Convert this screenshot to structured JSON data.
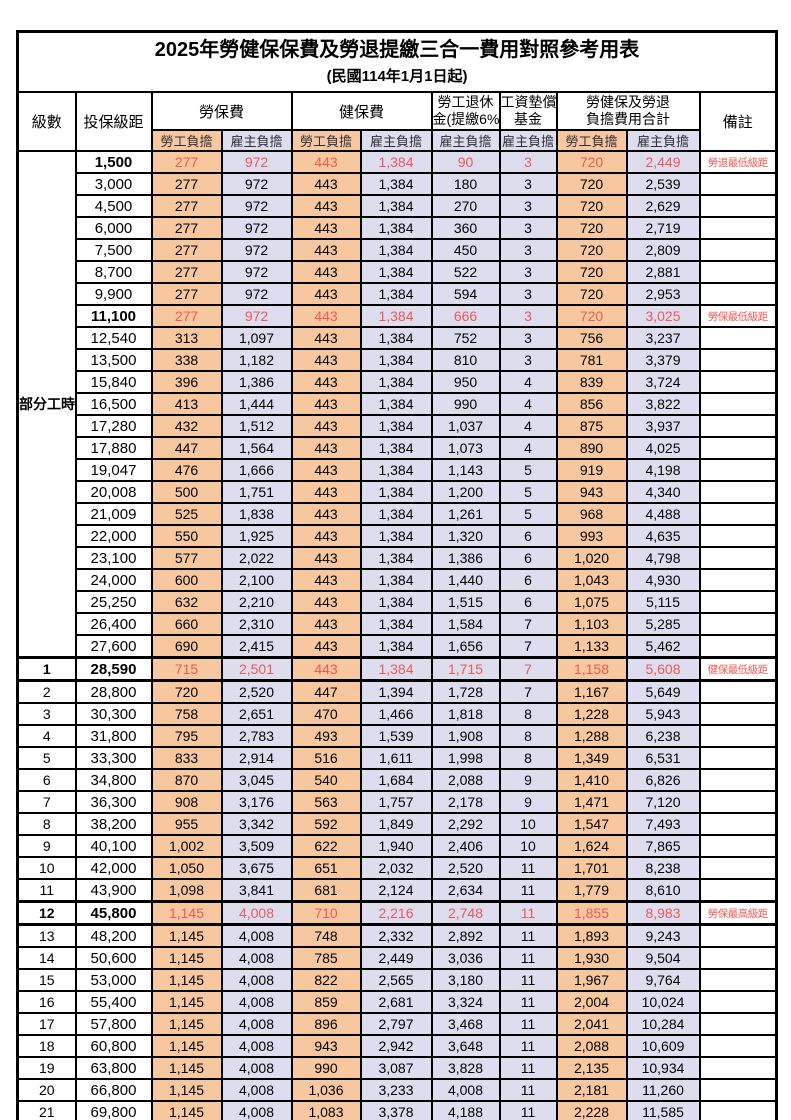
{
  "title": "2025年勞健保保費及勞退提繳三合一費用對照參考用表",
  "subtitle": "(民國114年1月1日起)",
  "colors": {
    "employee_bg": "#F7C89F",
    "employer_bg": "#DEDCEF",
    "red_text": "#EE5A55"
  },
  "columns": {
    "level": "級數",
    "bracket": "投保級距",
    "labor_insurance": "勞保費",
    "health_insurance": "健保費",
    "pension_line1": "勞工退休",
    "pension_line2": "金(提繳6%)",
    "wage_fund_line1": "工資墊償",
    "wage_fund_line2": "基金",
    "total_line1": "勞健保及勞退",
    "total_line2": "負擔費用合計",
    "remark": "備註",
    "employee": "勞工負擔",
    "employer": "雇主負擔"
  },
  "part_time_label": "部分工時",
  "rows": [
    {
      "level": null,
      "bracket": "1,500",
      "values": [
        "277",
        "972",
        "443",
        "1,384",
        "90",
        "3",
        "720",
        "2,449"
      ],
      "remark": "勞退最低級距",
      "highlight": true,
      "thick": false
    },
    {
      "level": null,
      "bracket": "3,000",
      "values": [
        "277",
        "972",
        "443",
        "1,384",
        "180",
        "3",
        "720",
        "2,539"
      ],
      "remark": "",
      "highlight": false,
      "thick": false
    },
    {
      "level": null,
      "bracket": "4,500",
      "values": [
        "277",
        "972",
        "443",
        "1,384",
        "270",
        "3",
        "720",
        "2,629"
      ],
      "remark": "",
      "highlight": false,
      "thick": false
    },
    {
      "level": null,
      "bracket": "6,000",
      "values": [
        "277",
        "972",
        "443",
        "1,384",
        "360",
        "3",
        "720",
        "2,719"
      ],
      "remark": "",
      "highlight": false,
      "thick": false
    },
    {
      "level": null,
      "bracket": "7,500",
      "values": [
        "277",
        "972",
        "443",
        "1,384",
        "450",
        "3",
        "720",
        "2,809"
      ],
      "remark": "",
      "highlight": false,
      "thick": false
    },
    {
      "level": null,
      "bracket": "8,700",
      "values": [
        "277",
        "972",
        "443",
        "1,384",
        "522",
        "3",
        "720",
        "2,881"
      ],
      "remark": "",
      "highlight": false,
      "thick": false
    },
    {
      "level": null,
      "bracket": "9,900",
      "values": [
        "277",
        "972",
        "443",
        "1,384",
        "594",
        "3",
        "720",
        "2,953"
      ],
      "remark": "",
      "highlight": false,
      "thick": false
    },
    {
      "level": null,
      "bracket": "11,100",
      "values": [
        "277",
        "972",
        "443",
        "1,384",
        "666",
        "3",
        "720",
        "3,025"
      ],
      "remark": "勞保最低級距",
      "highlight": true,
      "thick": false
    },
    {
      "level": null,
      "bracket": "12,540",
      "values": [
        "313",
        "1,097",
        "443",
        "1,384",
        "752",
        "3",
        "756",
        "3,237"
      ],
      "remark": "",
      "highlight": false,
      "thick": false
    },
    {
      "level": null,
      "bracket": "13,500",
      "values": [
        "338",
        "1,182",
        "443",
        "1,384",
        "810",
        "3",
        "781",
        "3,379"
      ],
      "remark": "",
      "highlight": false,
      "thick": false
    },
    {
      "level": null,
      "bracket": "15,840",
      "values": [
        "396",
        "1,386",
        "443",
        "1,384",
        "950",
        "4",
        "839",
        "3,724"
      ],
      "remark": "",
      "highlight": false,
      "thick": false
    },
    {
      "level": null,
      "bracket": "16,500",
      "values": [
        "413",
        "1,444",
        "443",
        "1,384",
        "990",
        "4",
        "856",
        "3,822"
      ],
      "remark": "",
      "highlight": false,
      "thick": false
    },
    {
      "level": null,
      "bracket": "17,280",
      "values": [
        "432",
        "1,512",
        "443",
        "1,384",
        "1,037",
        "4",
        "875",
        "3,937"
      ],
      "remark": "",
      "highlight": false,
      "thick": false
    },
    {
      "level": null,
      "bracket": "17,880",
      "values": [
        "447",
        "1,564",
        "443",
        "1,384",
        "1,073",
        "4",
        "890",
        "4,025"
      ],
      "remark": "",
      "highlight": false,
      "thick": false
    },
    {
      "level": null,
      "bracket": "19,047",
      "values": [
        "476",
        "1,666",
        "443",
        "1,384",
        "1,143",
        "5",
        "919",
        "4,198"
      ],
      "remark": "",
      "highlight": false,
      "thick": false
    },
    {
      "level": null,
      "bracket": "20,008",
      "values": [
        "500",
        "1,751",
        "443",
        "1,384",
        "1,200",
        "5",
        "943",
        "4,340"
      ],
      "remark": "",
      "highlight": false,
      "thick": false
    },
    {
      "level": null,
      "bracket": "21,009",
      "values": [
        "525",
        "1,838",
        "443",
        "1,384",
        "1,261",
        "5",
        "968",
        "4,488"
      ],
      "remark": "",
      "highlight": false,
      "thick": false
    },
    {
      "level": null,
      "bracket": "22,000",
      "values": [
        "550",
        "1,925",
        "443",
        "1,384",
        "1,320",
        "6",
        "993",
        "4,635"
      ],
      "remark": "",
      "highlight": false,
      "thick": false
    },
    {
      "level": null,
      "bracket": "23,100",
      "values": [
        "577",
        "2,022",
        "443",
        "1,384",
        "1,386",
        "6",
        "1,020",
        "4,798"
      ],
      "remark": "",
      "highlight": false,
      "thick": false
    },
    {
      "level": null,
      "bracket": "24,000",
      "values": [
        "600",
        "2,100",
        "443",
        "1,384",
        "1,440",
        "6",
        "1,043",
        "4,930"
      ],
      "remark": "",
      "highlight": false,
      "thick": false
    },
    {
      "level": null,
      "bracket": "25,250",
      "values": [
        "632",
        "2,210",
        "443",
        "1,384",
        "1,515",
        "6",
        "1,075",
        "5,115"
      ],
      "remark": "",
      "highlight": false,
      "thick": false
    },
    {
      "level": null,
      "bracket": "26,400",
      "values": [
        "660",
        "2,310",
        "443",
        "1,384",
        "1,584",
        "7",
        "1,103",
        "5,285"
      ],
      "remark": "",
      "highlight": false,
      "thick": false
    },
    {
      "level": null,
      "bracket": "27,600",
      "values": [
        "690",
        "2,415",
        "443",
        "1,384",
        "1,656",
        "7",
        "1,133",
        "5,462"
      ],
      "remark": "",
      "highlight": false,
      "thick": false
    },
    {
      "level": "1",
      "bracket": "28,590",
      "values": [
        "715",
        "2,501",
        "443",
        "1,384",
        "1,715",
        "7",
        "1,158",
        "5,608"
      ],
      "remark": "健保最低級距",
      "highlight": true,
      "thick": true
    },
    {
      "level": "2",
      "bracket": "28,800",
      "values": [
        "720",
        "2,520",
        "447",
        "1,394",
        "1,728",
        "7",
        "1,167",
        "5,649"
      ],
      "remark": "",
      "highlight": false,
      "thick": false
    },
    {
      "level": "3",
      "bracket": "30,300",
      "values": [
        "758",
        "2,651",
        "470",
        "1,466",
        "1,818",
        "8",
        "1,228",
        "5,943"
      ],
      "remark": "",
      "highlight": false,
      "thick": false
    },
    {
      "level": "4",
      "bracket": "31,800",
      "values": [
        "795",
        "2,783",
        "493",
        "1,539",
        "1,908",
        "8",
        "1,288",
        "6,238"
      ],
      "remark": "",
      "highlight": false,
      "thick": false
    },
    {
      "level": "5",
      "bracket": "33,300",
      "values": [
        "833",
        "2,914",
        "516",
        "1,611",
        "1,998",
        "8",
        "1,349",
        "6,531"
      ],
      "remark": "",
      "highlight": false,
      "thick": false
    },
    {
      "level": "6",
      "bracket": "34,800",
      "values": [
        "870",
        "3,045",
        "540",
        "1,684",
        "2,088",
        "9",
        "1,410",
        "6,826"
      ],
      "remark": "",
      "highlight": false,
      "thick": false
    },
    {
      "level": "7",
      "bracket": "36,300",
      "values": [
        "908",
        "3,176",
        "563",
        "1,757",
        "2,178",
        "9",
        "1,471",
        "7,120"
      ],
      "remark": "",
      "highlight": false,
      "thick": false
    },
    {
      "level": "8",
      "bracket": "38,200",
      "values": [
        "955",
        "3,342",
        "592",
        "1,849",
        "2,292",
        "10",
        "1,547",
        "7,493"
      ],
      "remark": "",
      "highlight": false,
      "thick": false
    },
    {
      "level": "9",
      "bracket": "40,100",
      "values": [
        "1,002",
        "3,509",
        "622",
        "1,940",
        "2,406",
        "10",
        "1,624",
        "7,865"
      ],
      "remark": "",
      "highlight": false,
      "thick": false
    },
    {
      "level": "10",
      "bracket": "42,000",
      "values": [
        "1,050",
        "3,675",
        "651",
        "2,032",
        "2,520",
        "11",
        "1,701",
        "8,238"
      ],
      "remark": "",
      "highlight": false,
      "thick": false
    },
    {
      "level": "11",
      "bracket": "43,900",
      "values": [
        "1,098",
        "3,841",
        "681",
        "2,124",
        "2,634",
        "11",
        "1,779",
        "8,610"
      ],
      "remark": "",
      "highlight": false,
      "thick": false
    },
    {
      "level": "12",
      "bracket": "45,800",
      "values": [
        "1,145",
        "4,008",
        "710",
        "2,216",
        "2,748",
        "11",
        "1,855",
        "8,983"
      ],
      "remark": "勞保最高級距",
      "highlight": true,
      "thick": true
    },
    {
      "level": "13",
      "bracket": "48,200",
      "values": [
        "1,145",
        "4,008",
        "748",
        "2,332",
        "2,892",
        "11",
        "1,893",
        "9,243"
      ],
      "remark": "",
      "highlight": false,
      "thick": false
    },
    {
      "level": "14",
      "bracket": "50,600",
      "values": [
        "1,145",
        "4,008",
        "785",
        "2,449",
        "3,036",
        "11",
        "1,930",
        "9,504"
      ],
      "remark": "",
      "highlight": false,
      "thick": false
    },
    {
      "level": "15",
      "bracket": "53,000",
      "values": [
        "1,145",
        "4,008",
        "822",
        "2,565",
        "3,180",
        "11",
        "1,967",
        "9,764"
      ],
      "remark": "",
      "highlight": false,
      "thick": false
    },
    {
      "level": "16",
      "bracket": "55,400",
      "values": [
        "1,145",
        "4,008",
        "859",
        "2,681",
        "3,324",
        "11",
        "2,004",
        "10,024"
      ],
      "remark": "",
      "highlight": false,
      "thick": false
    },
    {
      "level": "17",
      "bracket": "57,800",
      "values": [
        "1,145",
        "4,008",
        "896",
        "2,797",
        "3,468",
        "11",
        "2,041",
        "10,284"
      ],
      "remark": "",
      "highlight": false,
      "thick": false
    },
    {
      "level": "18",
      "bracket": "60,800",
      "values": [
        "1,145",
        "4,008",
        "943",
        "2,942",
        "3,648",
        "11",
        "2,088",
        "10,609"
      ],
      "remark": "",
      "highlight": false,
      "thick": false
    },
    {
      "level": "19",
      "bracket": "63,800",
      "values": [
        "1,145",
        "4,008",
        "990",
        "3,087",
        "3,828",
        "11",
        "2,135",
        "10,934"
      ],
      "remark": "",
      "highlight": false,
      "thick": false
    },
    {
      "level": "20",
      "bracket": "66,800",
      "values": [
        "1,145",
        "4,008",
        "1,036",
        "3,233",
        "4,008",
        "11",
        "2,181",
        "11,260"
      ],
      "remark": "",
      "highlight": false,
      "thick": false
    },
    {
      "level": "21",
      "bracket": "69,800",
      "values": [
        "1,145",
        "4,008",
        "1,083",
        "3,378",
        "4,188",
        "11",
        "2,228",
        "11,585"
      ],
      "remark": "",
      "highlight": false,
      "thick": false
    }
  ]
}
